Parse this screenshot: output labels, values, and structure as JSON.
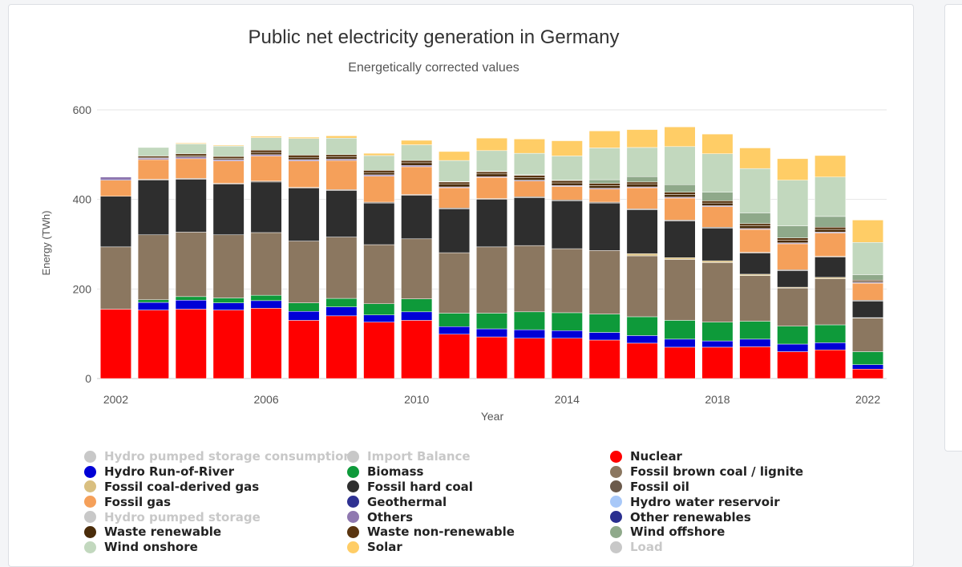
{
  "chart_data": {
    "type": "bar",
    "stacked": true,
    "title": "Public net electricity generation in Germany",
    "subtitle": "Energetically corrected values",
    "xlabel": "Year",
    "ylabel": "Energy (TWh)",
    "ylim": [
      0,
      600
    ],
    "yticks": [
      0,
      200,
      400,
      600
    ],
    "xticks": [
      "2002",
      "2006",
      "2010",
      "2014",
      "2018",
      "2022"
    ],
    "categories": [
      "2002",
      "2003",
      "2004",
      "2005",
      "2006",
      "2007",
      "2008",
      "2009",
      "2010",
      "2011",
      "2012",
      "2013",
      "2014",
      "2015",
      "2016",
      "2017",
      "2018",
      "2019",
      "2020",
      "2021",
      "2022"
    ],
    "grid": true,
    "series": [
      {
        "name": "Nuclear",
        "color": "#ff0000",
        "values": [
          155,
          153,
          155,
          153,
          157,
          130,
          140,
          126,
          130,
          99,
          93,
          90,
          90,
          86,
          79,
          70,
          70,
          71,
          60,
          64,
          21
        ]
      },
      {
        "name": "Hydro Run-of-River",
        "color": "#0000d6",
        "values": [
          0,
          17,
          20,
          16,
          17,
          20,
          20,
          16,
          19,
          17,
          18,
          19,
          17,
          17,
          17,
          18,
          14,
          17,
          17,
          16,
          10
        ]
      },
      {
        "name": "Biomass",
        "color": "#0e9a3a",
        "values": [
          0,
          6,
          8,
          11,
          12,
          19,
          19,
          25,
          29,
          30,
          35,
          40,
          40,
          41,
          42,
          42,
          42,
          40,
          40,
          40,
          29
        ]
      },
      {
        "name": "Fossil brown coal / lignite",
        "color": "#8b7760",
        "values": [
          139,
          145,
          144,
          141,
          140,
          138,
          137,
          132,
          134,
          135,
          148,
          148,
          143,
          142,
          136,
          136,
          133,
          102,
          85,
          103,
          75
        ]
      },
      {
        "name": "Fossil coal-derived gas",
        "color": "#d9bf80",
        "values": [
          0,
          0,
          0,
          0,
          0,
          0,
          0,
          0,
          0,
          0,
          0,
          0,
          0,
          0,
          5,
          4,
          4,
          3,
          2,
          3,
          1
        ]
      },
      {
        "name": "Fossil hard coal",
        "color": "#2e2e2e",
        "values": [
          113,
          122,
          118,
          113,
          113,
          118,
          104,
          93,
          97,
          98,
          106,
          107,
          107,
          106,
          98,
          82,
          73,
          47,
          37,
          45,
          37
        ]
      },
      {
        "name": "Fossil oil",
        "color": "#6b5a4b",
        "values": [
          0,
          2,
          2,
          2,
          2,
          2,
          2,
          2,
          2,
          2,
          2,
          2,
          2,
          2,
          2,
          2,
          2,
          2,
          2,
          2,
          2
        ]
      },
      {
        "name": "Fossil gas",
        "color": "#f5a05a",
        "values": [
          36,
          44,
          44,
          50,
          56,
          59,
          65,
          58,
          62,
          45,
          47,
          35,
          30,
          29,
          47,
          49,
          46,
          51,
          58,
          52,
          38
        ]
      },
      {
        "name": "Geothermal",
        "color": "#2e3192",
        "values": [
          0,
          0,
          0,
          0,
          0,
          0,
          0,
          0,
          0,
          0,
          0,
          0,
          0,
          0,
          0,
          0,
          0,
          0,
          0,
          0,
          0
        ]
      },
      {
        "name": "Hydro water reservoir",
        "color": "#a8c8f8",
        "values": [
          0,
          0,
          0,
          0,
          0,
          0,
          0,
          0,
          0,
          0,
          0,
          0,
          0,
          0,
          0,
          0,
          0,
          0,
          0,
          0,
          0
        ]
      },
      {
        "name": "Others",
        "color": "#8f78b0",
        "values": [
          7,
          3,
          4,
          3,
          3,
          3,
          3,
          3,
          3,
          2,
          2,
          2,
          2,
          2,
          2,
          2,
          2,
          2,
          2,
          2,
          2
        ]
      },
      {
        "name": "Other renewables",
        "color": "#2a2f8f",
        "values": [
          0,
          0,
          0,
          0,
          0,
          0,
          0,
          0,
          0,
          0,
          0,
          0,
          0,
          0,
          0,
          0,
          0,
          0,
          0,
          0,
          0
        ]
      },
      {
        "name": "Waste renewable",
        "color": "#4a2c0a",
        "values": [
          0,
          2,
          3,
          3,
          5,
          5,
          5,
          5,
          6,
          6,
          6,
          6,
          6,
          6,
          6,
          6,
          6,
          6,
          6,
          6,
          3
        ]
      },
      {
        "name": "Waste non-renewable",
        "color": "#5a3510",
        "values": [
          0,
          3,
          4,
          4,
          5,
          5,
          5,
          5,
          5,
          5,
          5,
          5,
          5,
          5,
          5,
          5,
          5,
          5,
          5,
          5,
          2
        ]
      },
      {
        "name": "Wind offshore",
        "color": "#8fa98a",
        "values": [
          0,
          0,
          0,
          0,
          0,
          0,
          0,
          0,
          0,
          1,
          1,
          1,
          1,
          8,
          12,
          17,
          19,
          24,
          27,
          24,
          12
        ]
      },
      {
        "name": "Wind onshore",
        "color": "#c2d8be",
        "values": [
          0,
          19,
          22,
          23,
          28,
          37,
          37,
          33,
          35,
          47,
          46,
          48,
          54,
          71,
          65,
          85,
          86,
          99,
          102,
          88,
          72
        ]
      },
      {
        "name": "Solar",
        "color": "#ffcd66",
        "values": [
          0,
          0,
          2,
          2,
          3,
          3,
          5,
          5,
          10,
          20,
          28,
          32,
          34,
          38,
          40,
          44,
          44,
          46,
          48,
          48,
          50
        ]
      }
    ],
    "legend": [
      {
        "name": "Hydro pumped storage consumption",
        "color": "#c8c8c8",
        "visible": false
      },
      {
        "name": "Import Balance",
        "color": "#c8c8c8",
        "visible": false
      },
      {
        "name": "Nuclear",
        "color": "#ff0000",
        "visible": true
      },
      {
        "name": "Hydro Run-of-River",
        "color": "#0000d6",
        "visible": true
      },
      {
        "name": "Biomass",
        "color": "#0e9a3a",
        "visible": true
      },
      {
        "name": "Fossil brown coal / lignite",
        "color": "#8b7760",
        "visible": true
      },
      {
        "name": "Fossil coal-derived gas",
        "color": "#d9bf80",
        "visible": true
      },
      {
        "name": "Fossil hard coal",
        "color": "#2e2e2e",
        "visible": true
      },
      {
        "name": "Fossil oil",
        "color": "#6b5a4b",
        "visible": true
      },
      {
        "name": "Fossil gas",
        "color": "#f5a05a",
        "visible": true
      },
      {
        "name": "Geothermal",
        "color": "#2e3192",
        "visible": true
      },
      {
        "name": "Hydro water reservoir",
        "color": "#a8c8f8",
        "visible": true
      },
      {
        "name": "Hydro pumped storage",
        "color": "#c8c8c8",
        "visible": false
      },
      {
        "name": "Others",
        "color": "#8f78b0",
        "visible": true
      },
      {
        "name": "Other renewables",
        "color": "#2a2f8f",
        "visible": true
      },
      {
        "name": "Waste renewable",
        "color": "#4a2c0a",
        "visible": true
      },
      {
        "name": "Waste non-renewable",
        "color": "#5a3510",
        "visible": true
      },
      {
        "name": "Wind offshore",
        "color": "#8fa98a",
        "visible": true
      },
      {
        "name": "Wind onshore",
        "color": "#c2d8be",
        "visible": true
      },
      {
        "name": "Solar",
        "color": "#ffcd66",
        "visible": true
      },
      {
        "name": "Load",
        "color": "#c8c8c8",
        "visible": false
      }
    ]
  }
}
